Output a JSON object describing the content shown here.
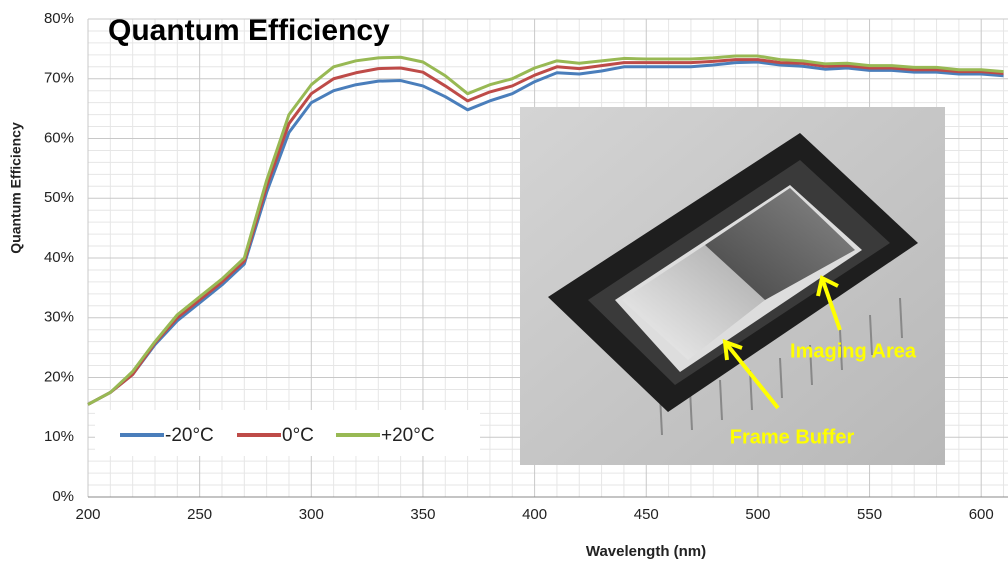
{
  "chart_data": {
    "type": "line",
    "title": "Quantum Efficiency",
    "x_label": "Wavelength (nm)",
    "y_label": "Quantum Efficiency",
    "x": [
      200,
      210,
      220,
      230,
      240,
      250,
      260,
      270,
      280,
      290,
      300,
      310,
      320,
      330,
      340,
      350,
      360,
      370,
      380,
      390,
      400,
      410,
      420,
      430,
      440,
      450,
      460,
      470,
      480,
      490,
      500,
      510,
      520,
      530,
      540,
      550,
      560,
      570,
      580,
      590,
      600,
      610
    ],
    "series": [
      {
        "name": "-20°C",
        "color": "#4a7ebb",
        "values": [
          15.5,
          17.5,
          20.5,
          25.5,
          29.5,
          32.5,
          35.5,
          39,
          51,
          61,
          66,
          68,
          69,
          69.6,
          69.7,
          68.8,
          67,
          64.8,
          66.3,
          67.5,
          69.5,
          71,
          70.8,
          71.3,
          72,
          72,
          72,
          72,
          72.3,
          72.7,
          72.8,
          72.3,
          72.1,
          71.6,
          71.8,
          71.4,
          71.4,
          71.1,
          71.1,
          70.8,
          70.8,
          70.5
        ]
      },
      {
        "name": "0°C",
        "color": "#be4b48",
        "values": [
          15.5,
          17.5,
          20.5,
          25.8,
          30,
          33,
          36,
          39.5,
          52,
          62.5,
          67.5,
          70,
          71,
          71.7,
          71.8,
          71.1,
          68.8,
          66.3,
          67.8,
          68.8,
          70.6,
          72,
          71.7,
          72.2,
          72.7,
          72.7,
          72.7,
          72.7,
          72.9,
          73.2,
          73.2,
          72.7,
          72.6,
          72.1,
          72.2,
          71.8,
          71.8,
          71.5,
          71.5,
          71.2,
          71.2,
          70.9
        ]
      },
      {
        "name": "+20°C",
        "color": "#98b954",
        "values": [
          15.5,
          17.5,
          21,
          26,
          30.5,
          33.5,
          36.5,
          40,
          53,
          64,
          69,
          72,
          73,
          73.5,
          73.6,
          72.8,
          70.5,
          67.5,
          69,
          70,
          71.8,
          73,
          72.6,
          73,
          73.4,
          73.3,
          73.3,
          73.3,
          73.5,
          73.8,
          73.8,
          73.2,
          73,
          72.5,
          72.6,
          72.2,
          72.2,
          71.9,
          71.9,
          71.5,
          71.5,
          71.2
        ]
      }
    ],
    "xlim": [
      200,
      612
    ],
    "ylim": [
      0,
      80
    ],
    "xticks": [
      200,
      250,
      300,
      350,
      400,
      450,
      500,
      550,
      600
    ],
    "yticks": [
      {
        "value": 0,
        "label": "0%"
      },
      {
        "value": 10,
        "label": "10%"
      },
      {
        "value": 20,
        "label": "20%"
      },
      {
        "value": 30,
        "label": "30%"
      },
      {
        "value": 40,
        "label": "40%"
      },
      {
        "value": 50,
        "label": "50%"
      },
      {
        "value": 60,
        "label": "60%"
      },
      {
        "value": 70,
        "label": "70%"
      },
      {
        "value": 80,
        "label": "80%"
      }
    ],
    "grid": true,
    "legend": "lower left",
    "annotations": [
      "Imaging Area",
      "Frame Buffer"
    ]
  }
}
